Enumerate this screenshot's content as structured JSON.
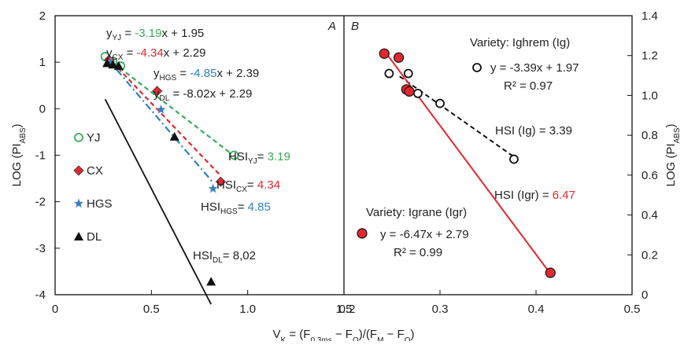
{
  "figure": {
    "xlabel_html": [
      "V",
      "K",
      " = (F",
      "0.3ms",
      " − F",
      "O",
      ")/(F",
      "M",
      " − F",
      "O",
      ")"
    ],
    "ylabel_left": [
      "LOG (PI",
      "ABS",
      ")"
    ],
    "ylabel_right": [
      "LOG (PI",
      "ABS",
      ")"
    ]
  },
  "chart_data": [
    {
      "type": "scatter",
      "panel": "A",
      "xlim": [
        0,
        1.5
      ],
      "ylim": [
        -4,
        2
      ],
      "xticks": [
        "0",
        "0.5",
        "1.0",
        "1.5"
      ],
      "xtick_values": [
        0,
        0.5,
        1.0,
        1.5
      ],
      "yticks": [
        "2",
        "1",
        "0",
        "-1",
        "-2",
        "-3",
        "-4"
      ],
      "ytick_values": [
        2,
        1,
        0,
        -1,
        -2,
        -3,
        -4
      ],
      "series": [
        {
          "name": "YJ",
          "marker": "circle-open",
          "color": "#3aaa5c",
          "line_style": "dashed",
          "points": [
            [
              0.26,
              1.12
            ],
            [
              0.3,
              1.02
            ],
            [
              0.34,
              0.92
            ],
            [
              0.93,
              -1.0
            ]
          ],
          "fit": {
            "slope": -3.19,
            "intercept": 1.95,
            "x_range": [
              0.27,
              0.93
            ]
          },
          "equation": {
            "pre": "y",
            "sub": "YJ",
            "mid": " = ",
            "slope": "-3.19",
            "post": "x + 1.95"
          },
          "hsi": {
            "pre": "HSI",
            "sub": "YJ",
            "mid": "= ",
            "value": "3.19"
          }
        },
        {
          "name": "CX",
          "marker": "diamond",
          "color": "#e2282e",
          "line_style": "dashed",
          "points": [
            [
              0.28,
              1.05
            ],
            [
              0.53,
              0.38
            ],
            [
              0.86,
              -1.57
            ]
          ],
          "fit": {
            "slope": -4.34,
            "intercept": 2.29,
            "x_range": [
              0.27,
              0.86
            ]
          },
          "equation": {
            "pre": "y",
            "sub": "CX",
            "mid": " = ",
            "slope": "-4.34",
            "post": "x + 2.29"
          },
          "hsi": {
            "pre": "HSI",
            "sub": "CX",
            "mid": "= ",
            "value": "4.34"
          }
        },
        {
          "name": "HGS",
          "marker": "star",
          "color": "#2f7fc1",
          "line_style": "dashdot",
          "points": [
            [
              0.29,
              1.0
            ],
            [
              0.55,
              -0.02
            ],
            [
              0.82,
              -1.72
            ]
          ],
          "fit": {
            "slope": -4.85,
            "intercept": 2.39,
            "x_range": [
              0.27,
              0.82
            ]
          },
          "equation": {
            "pre": "y",
            "sub": "HGS",
            "mid": " = ",
            "slope": "-4.85",
            "post": "x + 2.39"
          },
          "hsi": {
            "pre": "HSI",
            "sub": "HGS",
            "mid": "= ",
            "value": "4.85"
          }
        },
        {
          "name": "DL",
          "marker": "triangle",
          "color": "#111111",
          "line_style": "solid",
          "points": [
            [
              0.27,
              0.98
            ],
            [
              0.3,
              0.95
            ],
            [
              0.33,
              0.92
            ],
            [
              0.62,
              -0.6
            ],
            [
              0.81,
              -3.72
            ]
          ],
          "fit": {
            "slope": -8.02,
            "intercept": 2.29,
            "x_range": [
              0.26,
              0.81
            ]
          },
          "equation": {
            "pre": "y",
            "sub": "DL",
            "mid": " = ",
            "slope": "",
            "post": "-8.02x + 2.29"
          },
          "hsi": {
            "pre": "HSI",
            "sub": "DL",
            "mid": "= ",
            "value": "8,02"
          }
        }
      ],
      "legend": [
        "YJ",
        "CX",
        "HGS",
        "DL"
      ]
    },
    {
      "type": "scatter",
      "panel": "B",
      "xlim": [
        0.2,
        0.5
      ],
      "ylim": [
        0,
        1.4
      ],
      "xticks": [
        "0.2",
        "0.3",
        "0.4",
        "0.5"
      ],
      "xtick_values": [
        0.2,
        0.3,
        0.4,
        0.5
      ],
      "yticks": [
        "1.4",
        "1.2",
        "1.0",
        "0.8",
        "0.6",
        "0.4",
        "0.2",
        "0"
      ],
      "ytick_values": [
        1.4,
        1.2,
        1.0,
        0.8,
        0.6,
        0.4,
        0.2,
        0
      ],
      "series": [
        {
          "name": "Variety: Ighrem (Ig)",
          "marker": "circle-open",
          "color": "#111111",
          "line_style": "dashed",
          "points": [
            [
              0.247,
              1.11
            ],
            [
              0.267,
              1.11
            ],
            [
              0.277,
              1.01
            ],
            [
              0.3,
              0.96
            ],
            [
              0.377,
              0.68
            ]
          ],
          "fit": {
            "slope": -3.39,
            "intercept": 1.97,
            "x_range": [
              0.258,
              0.377
            ]
          },
          "equation": "y = -3.39x + 1.97",
          "r2": "R² = 0.97",
          "hsi": {
            "text": "HSI (Ig) = 3.39",
            "value": ""
          }
        },
        {
          "name": "Variety: Igrane (Igr)",
          "marker": "circle-filled",
          "color": "#e2282e",
          "line_style": "solid",
          "points": [
            [
              0.242,
              1.21
            ],
            [
              0.257,
              1.19
            ],
            [
              0.265,
              1.03
            ],
            [
              0.268,
              1.02
            ],
            [
              0.415,
              0.11
            ]
          ],
          "fit": {
            "slope": -6.47,
            "intercept": 2.79,
            "x_range": [
              0.245,
              0.415
            ]
          },
          "equation": "y = -6.47x + 2.79",
          "r2": "R² = 0.99",
          "hsi": {
            "text": "HSI (Igr) = ",
            "value": "6.47"
          }
        }
      ]
    }
  ]
}
